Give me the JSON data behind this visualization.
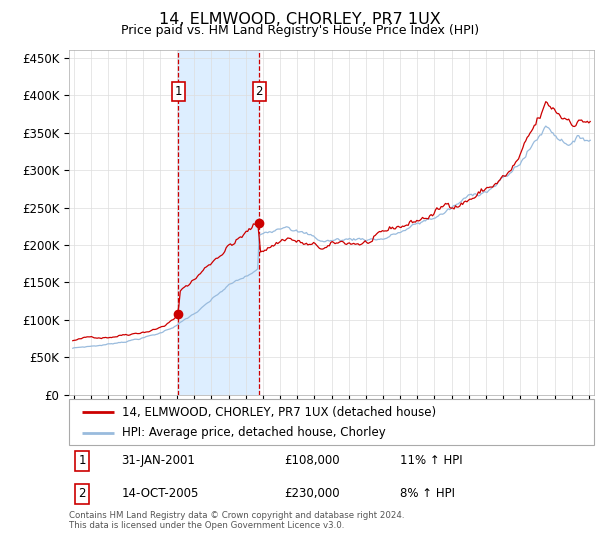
{
  "title": "14, ELMWOOD, CHORLEY, PR7 1UX",
  "subtitle": "Price paid vs. HM Land Registry's House Price Index (HPI)",
  "ytick_values": [
    0,
    50000,
    100000,
    150000,
    200000,
    250000,
    300000,
    350000,
    400000,
    450000
  ],
  "ylim": [
    0,
    460000
  ],
  "xlim_start": 1994.7,
  "xlim_end": 2025.3,
  "transaction1": {
    "date_num": 2001.08,
    "price": 108000,
    "label": "1",
    "date_str": "31-JAN-2001",
    "price_str": "£108,000",
    "hpi_str": "11% ↑ HPI"
  },
  "transaction2": {
    "date_num": 2005.79,
    "price": 230000,
    "label": "2",
    "date_str": "14-OCT-2005",
    "price_str": "£230,000",
    "hpi_str": "8% ↑ HPI"
  },
  "vshade_x1": 2001.08,
  "vshade_x2": 2005.79,
  "shade_color": "#ddeeff",
  "vline_color": "#cc0000",
  "dot_color": "#cc0000",
  "red_line_color": "#cc0000",
  "blue_line_color": "#99bbdd",
  "legend_label_red": "14, ELMWOOD, CHORLEY, PR7 1UX (detached house)",
  "legend_label_blue": "HPI: Average price, detached house, Chorley",
  "footer": "Contains HM Land Registry data © Crown copyright and database right 2024.\nThis data is licensed under the Open Government Licence v3.0.",
  "xtick_years": [
    1995,
    1996,
    1997,
    1998,
    1999,
    2000,
    2001,
    2002,
    2003,
    2004,
    2005,
    2006,
    2007,
    2008,
    2009,
    2010,
    2011,
    2012,
    2013,
    2014,
    2015,
    2016,
    2017,
    2018,
    2019,
    2020,
    2021,
    2022,
    2023,
    2024,
    2025
  ]
}
